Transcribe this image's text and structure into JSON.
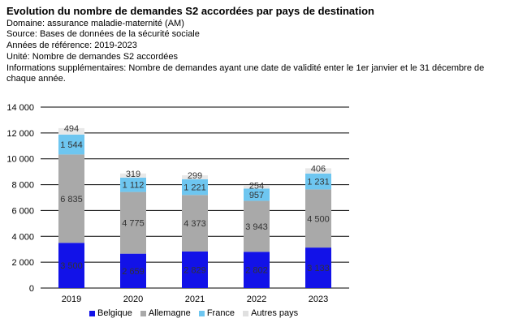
{
  "header": {
    "title": "Evolution du nombre de demandes S2 accordées par pays de destination",
    "domain": "Domaine: assurance maladie-maternité (AM)",
    "source": "Source: Bases de données de la sécurité sociale",
    "years": "Années de référence: 2019-2023",
    "unit": "Unité: Nombre de demandes S2 accordées",
    "info": "Informations supplémentaires: Nombre de demandes ayant une date de validité enter le 1er janvier et le 31 décembre de chaque année."
  },
  "colors": {
    "Belgique": "#1212e8",
    "Allemagne": "#a9a9a9",
    "France": "#6ec6f0",
    "Autres pays": "#e8e8e8"
  },
  "chart_data": {
    "type": "bar",
    "stacked": true,
    "categories": [
      "2019",
      "2020",
      "2021",
      "2022",
      "2023"
    ],
    "series": [
      {
        "name": "Belgique",
        "values": [
          3500,
          2659,
          2829,
          2802,
          3133
        ],
        "labels": [
          "3 500",
          "2 659",
          "2 829",
          "2 802",
          "3 133"
        ]
      },
      {
        "name": "Allemagne",
        "values": [
          6835,
          4775,
          4373,
          3943,
          4500
        ],
        "labels": [
          "6 835",
          "4 775",
          "4 373",
          "3 943",
          "4 500"
        ]
      },
      {
        "name": "France",
        "values": [
          1544,
          1112,
          1221,
          957,
          1231
        ],
        "labels": [
          "1 544",
          "1 112",
          "1 221",
          "957",
          "1 231"
        ]
      },
      {
        "name": "Autres pays",
        "values": [
          494,
          319,
          299,
          254,
          406
        ],
        "labels": [
          "494",
          "319",
          "299",
          "254",
          "406"
        ]
      }
    ],
    "ylim": [
      0,
      14000
    ],
    "yticks": [
      0,
      2000,
      4000,
      6000,
      8000,
      10000,
      12000,
      14000
    ],
    "ytick_labels": [
      "0",
      "2 000",
      "4 000",
      "6 000",
      "8 000",
      "10 000",
      "12 000",
      "14 000"
    ],
    "grid": true,
    "legend_position": "bottom"
  }
}
